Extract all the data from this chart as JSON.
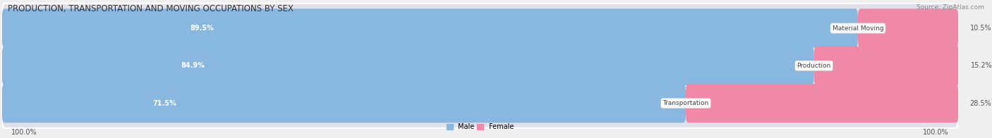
{
  "title": "PRODUCTION, TRANSPORTATION AND MOVING OCCUPATIONS BY SEX",
  "source": "Source: ZipAtlas.com",
  "categories": [
    "Material Moving",
    "Production",
    "Transportation"
  ],
  "male_pct": [
    89.5,
    84.9,
    71.5
  ],
  "female_pct": [
    10.5,
    15.2,
    28.5
  ],
  "male_color": "#88b8e0",
  "female_color": "#f088a8",
  "male_label": "Male",
  "female_label": "Female",
  "bg_color": "#efefef",
  "bar_bg_color": "#e0e0e8",
  "axis_label_left": "100.0%",
  "axis_label_right": "100.0%",
  "title_fontsize": 8.5,
  "source_fontsize": 6.5,
  "bar_height": 0.52,
  "figsize": [
    14.06,
    1.96
  ],
  "dpi": 100
}
